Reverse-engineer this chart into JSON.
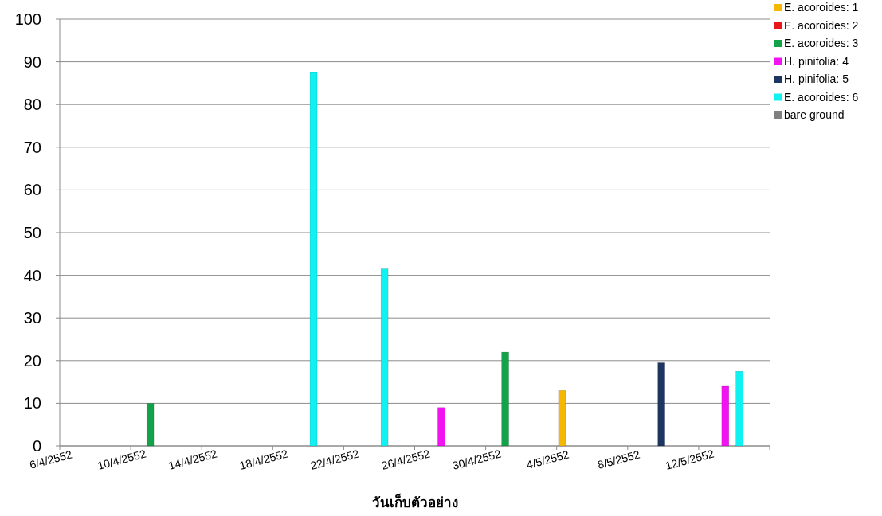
{
  "chart_data": {
    "type": "bar",
    "xlabel": "วันเก็บตัวอย่าง",
    "xlim": [
      "--04-06",
      "--05-16"
    ],
    "xticks": [
      {
        "value": "--04-06",
        "label": "6/4/2552"
      },
      {
        "value": "--04-10",
        "label": "10/4/2552"
      },
      {
        "value": "--04-14",
        "label": "14/4/2552"
      },
      {
        "value": "--04-18",
        "label": "18/4/2552"
      },
      {
        "value": "--04-22",
        "label": "22/4/2552"
      },
      {
        "value": "--04-26",
        "label": "26/4/2552"
      },
      {
        "value": "--04-30",
        "label": "30/4/2552"
      },
      {
        "value": "--05-04",
        "label": "4/5/2552"
      },
      {
        "value": "--05-08",
        "label": "8/5/2552"
      },
      {
        "value": "--05-12",
        "label": "12/5/2552"
      },
      {
        "value": "--05-16",
        "label": null
      }
    ],
    "ylim": [
      0,
      100
    ],
    "yticks": [
      0,
      10,
      20,
      30,
      40,
      50,
      60,
      70,
      80,
      90,
      100
    ],
    "grid": "y",
    "legend": "right",
    "series": [
      {
        "name": "E. acoroides: 1",
        "color": "#f5b800",
        "x": [
          "--05-05"
        ],
        "values": [
          13
        ]
      },
      {
        "name": "E. acoroides: 2",
        "color": "#e8161b"
      },
      {
        "name": "E. acoroides: 3",
        "color": "#12a24a",
        "x": [
          "--04-11",
          "--05-01"
        ],
        "values": [
          10,
          22
        ]
      },
      {
        "name": "H. pinifolia: 4",
        "color": "#f213f2",
        "x": [
          "--04-27",
          "--05-13"
        ],
        "values": [
          9,
          14
        ]
      },
      {
        "name": "H. pinifolia: 5",
        "color": "#1c3660",
        "x": [
          "--05-09"
        ],
        "values": [
          19.5
        ]
      },
      {
        "name": "E. acoroides: 6",
        "color": "#10f2f2",
        "x": [
          "--04-19",
          "--04-23",
          "--05-13"
        ],
        "values": [
          87.5,
          41.5,
          17.5
        ]
      },
      {
        "name": "bare ground",
        "color": "#808080"
      }
    ]
  }
}
